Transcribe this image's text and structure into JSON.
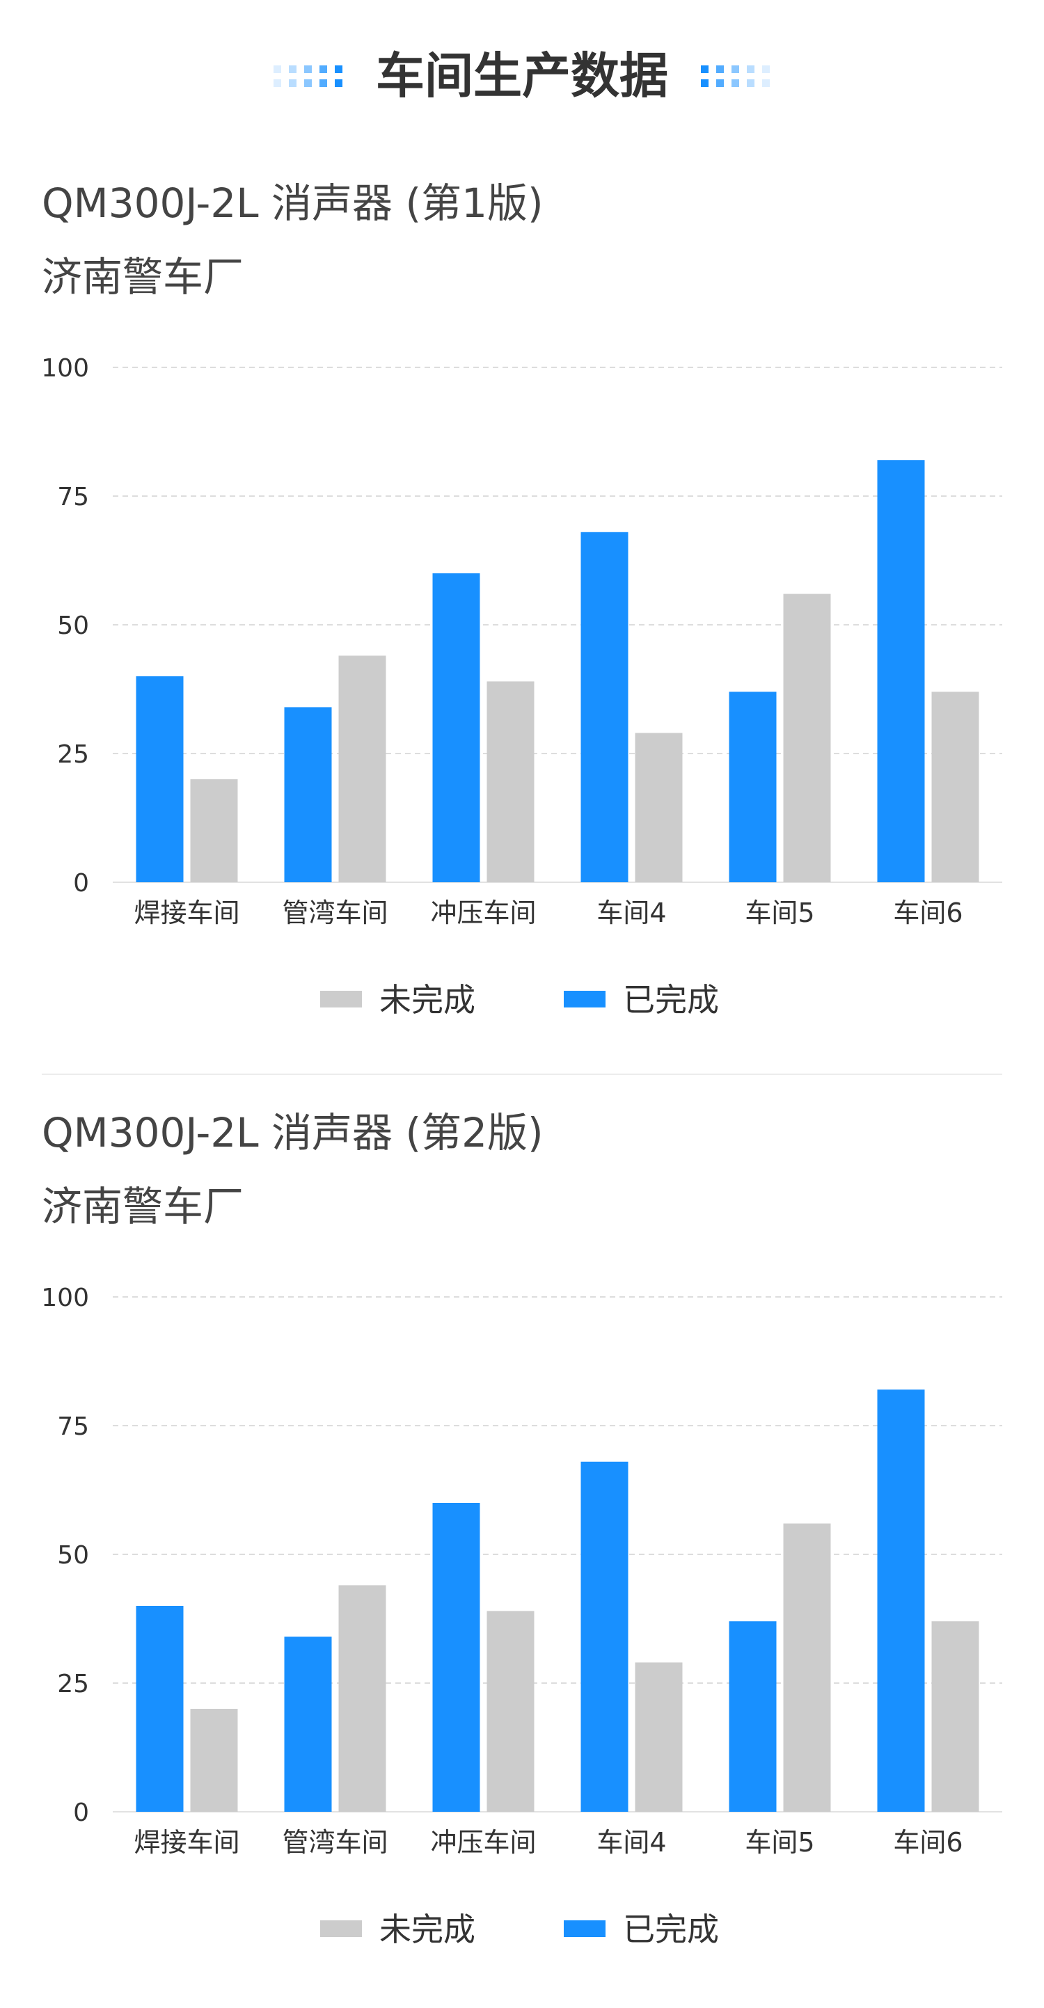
{
  "page": {
    "title": "车间生产数据",
    "colors": {
      "completed": "#1890FF",
      "incomplete": "#CCCCCC",
      "grid": "#DDDDDD",
      "text": "#333333"
    }
  },
  "chart_data": [
    {
      "type": "bar",
      "title": "QM300J-2L 消声器 (第1版)",
      "subtitle": "济南警车厂",
      "categories": [
        "焊接车间",
        "管湾车间",
        "冲压车间",
        "车间4",
        "车间5",
        "车间6"
      ],
      "series": [
        {
          "name": "已完成",
          "color": "#1890FF",
          "values": [
            40,
            34,
            60,
            68,
            37,
            82
          ]
        },
        {
          "name": "未完成",
          "color": "#CCCCCC",
          "values": [
            20,
            44,
            39,
            29,
            56,
            37
          ]
        }
      ],
      "yticks": [
        0,
        25,
        50,
        75,
        100
      ],
      "ylim": [
        0,
        100
      ],
      "grid": true,
      "legend": {
        "position": "bottom-center",
        "order": [
          "未完成",
          "已完成"
        ]
      }
    },
    {
      "type": "bar",
      "title": "QM300J-2L 消声器 (第2版)",
      "subtitle": "济南警车厂",
      "categories": [
        "焊接车间",
        "管湾车间",
        "冲压车间",
        "车间4",
        "车间5",
        "车间6"
      ],
      "series": [
        {
          "name": "已完成",
          "color": "#1890FF",
          "values": [
            40,
            34,
            60,
            68,
            37,
            82
          ]
        },
        {
          "name": "未完成",
          "color": "#CCCCCC",
          "values": [
            20,
            44,
            39,
            29,
            56,
            37
          ]
        }
      ],
      "yticks": [
        0,
        25,
        50,
        75,
        100
      ],
      "ylim": [
        0,
        100
      ],
      "grid": true,
      "legend": {
        "position": "bottom-center",
        "order": [
          "未完成",
          "已完成"
        ]
      }
    }
  ]
}
